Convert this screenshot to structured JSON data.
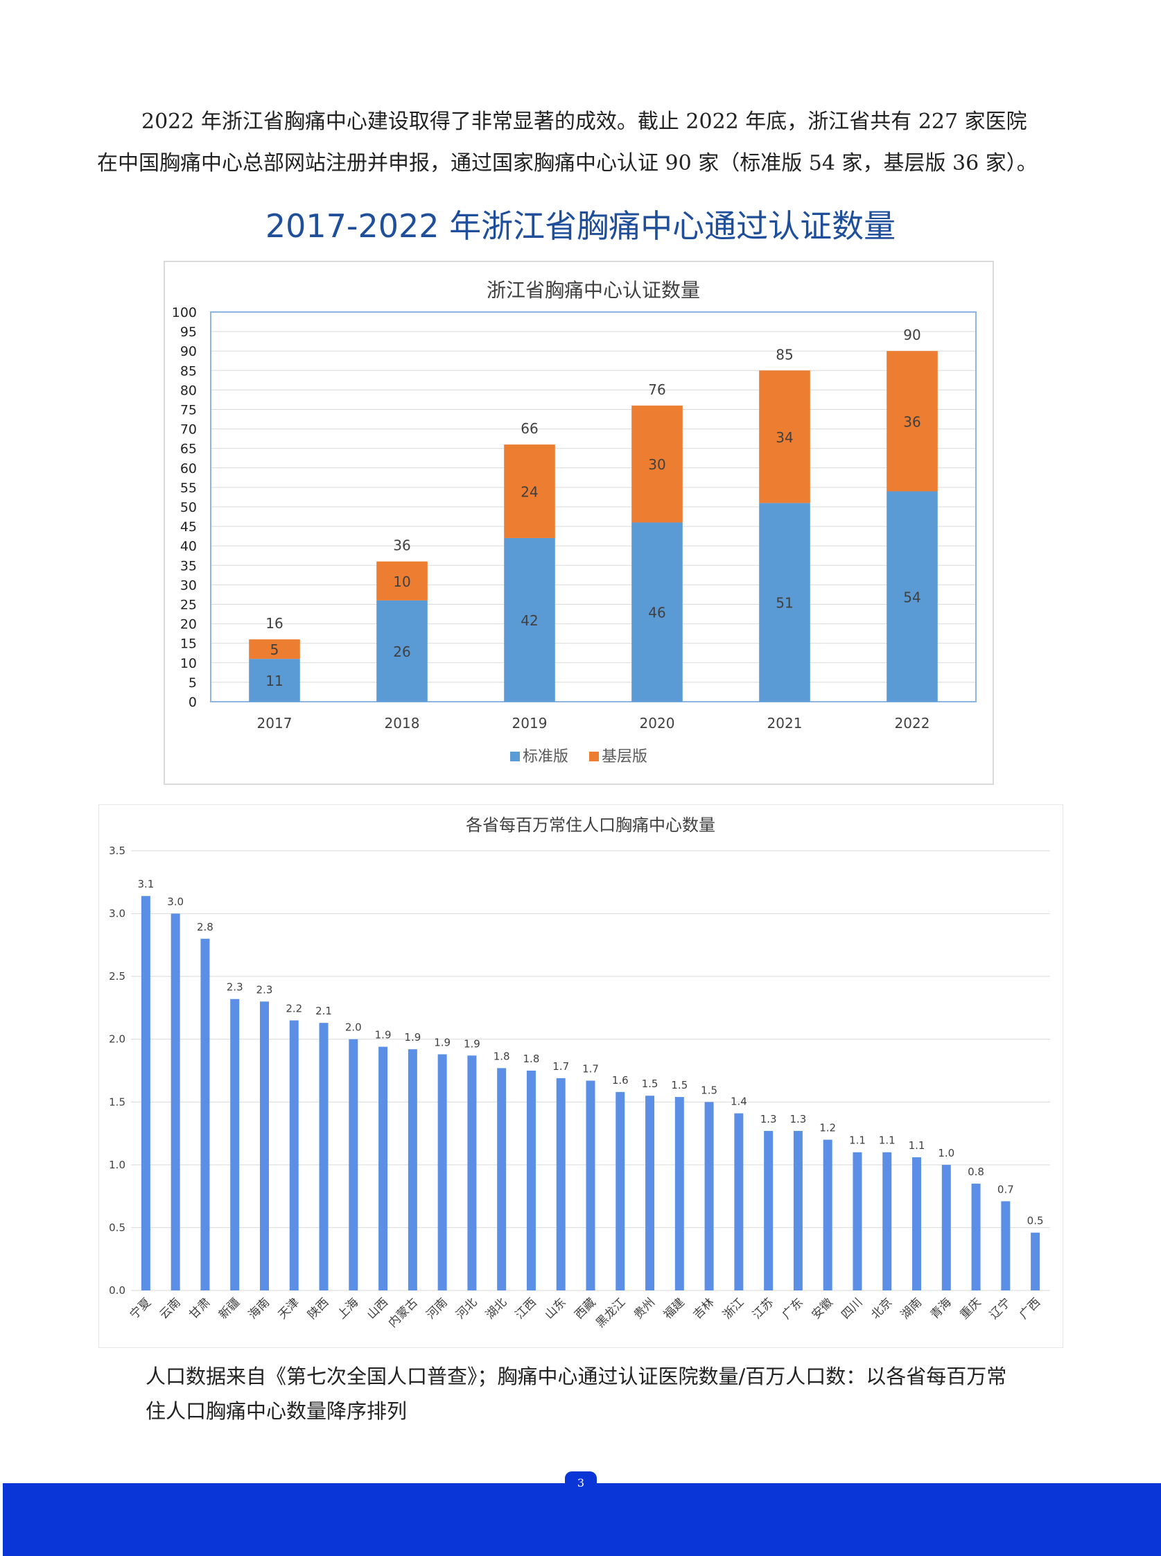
{
  "intro": {
    "line1": "2022 年浙江省胸痛中心建设取得了非常显著的成效。截止 2022 年底，浙江省共有 227 家医院",
    "line2": "在中国胸痛中心总部网站注册并申报，通过国家胸痛中心认证 90 家（标准版 54 家，基层版 36 家）。"
  },
  "page_heading": "2017-2022 年浙江省胸痛中心通过认证数量",
  "chart_data": [
    {
      "type": "bar",
      "stacked": true,
      "title": "浙江省胸痛中心认证数量",
      "categories": [
        "2017",
        "2018",
        "2019",
        "2020",
        "2021",
        "2022"
      ],
      "series": [
        {
          "name": "标准版",
          "values": [
            11,
            26,
            42,
            46,
            51,
            54
          ],
          "color": "#5b9bd5"
        },
        {
          "name": "基层版",
          "values": [
            5,
            10,
            24,
            30,
            34,
            36
          ],
          "color": "#ed7d31"
        }
      ],
      "totals": [
        16,
        36,
        66,
        76,
        85,
        90
      ],
      "ylim": [
        0,
        100
      ],
      "yticks": [
        0,
        5,
        10,
        15,
        20,
        25,
        30,
        35,
        40,
        45,
        50,
        55,
        60,
        65,
        70,
        75,
        80,
        85,
        90,
        95,
        100
      ],
      "grid": true,
      "legend_position": "bottom"
    },
    {
      "type": "bar",
      "title": "各省每百万常住人口胸痛中心数量",
      "categories": [
        "宁夏",
        "云南",
        "甘肃",
        "新疆",
        "海南",
        "天津",
        "陕西",
        "上海",
        "山西",
        "内蒙古",
        "河南",
        "河北",
        "湖北",
        "江西",
        "山东",
        "西藏",
        "黑龙江",
        "贵州",
        "福建",
        "吉林",
        "浙江",
        "江苏",
        "广东",
        "安徽",
        "四川",
        "北京",
        "湖南",
        "青海",
        "重庆",
        "辽宁",
        "广西"
      ],
      "values": [
        3.14,
        3.0,
        2.8,
        2.32,
        2.3,
        2.15,
        2.13,
        2.0,
        1.94,
        1.92,
        1.88,
        1.87,
        1.77,
        1.75,
        1.69,
        1.67,
        1.58,
        1.55,
        1.54,
        1.5,
        1.41,
        1.27,
        1.27,
        1.2,
        1.1,
        1.1,
        1.06,
        1.0,
        0.85,
        0.71,
        0.46
      ],
      "value_labels": [
        "3.1",
        "3.0",
        "2.8",
        "2.3",
        "2.3",
        "2.2",
        "2.1",
        "2.0",
        "1.9",
        "1.9",
        "1.9",
        "1.9",
        "1.8",
        "1.8",
        "1.7",
        "1.7",
        "1.6",
        "1.5",
        "1.5",
        "1.5",
        "1.4",
        "1.3",
        "1.3",
        "1.2",
        "1.1",
        "1.1",
        "1.1",
        "1.0",
        "0.8",
        "0.7",
        "0.5"
      ],
      "ylim": [
        0,
        3.5
      ],
      "yticks": [
        "0.0",
        "0.5",
        "1.0",
        "1.5",
        "2.0",
        "2.5",
        "3.0",
        "3.5"
      ],
      "color": "#5b8fe6",
      "grid": true
    }
  ],
  "note": {
    "line1": "人口数据来自《第七次全国人口普查》；胸痛中心通过认证医院数量/百万人口数：以各省每百万常",
    "line2": "住人口胸痛中心数量降序排列"
  },
  "footer": {
    "page_number": "3"
  }
}
